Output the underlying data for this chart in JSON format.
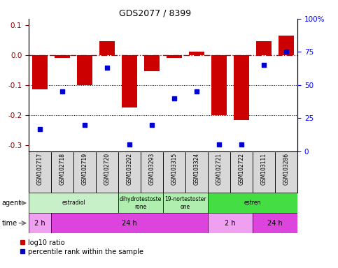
{
  "title": "GDS2077 / 8399",
  "samples": [
    "GSM102717",
    "GSM102718",
    "GSM102719",
    "GSM102720",
    "GSM103292",
    "GSM103293",
    "GSM103315",
    "GSM103324",
    "GSM102721",
    "GSM102722",
    "GSM103111",
    "GSM103286"
  ],
  "log10_ratio": [
    -0.115,
    -0.01,
    -0.1,
    0.045,
    -0.175,
    -0.055,
    -0.01,
    0.01,
    -0.2,
    -0.215,
    0.045,
    0.065
  ],
  "percentile": [
    17,
    45,
    20,
    63,
    5,
    20,
    40,
    45,
    5,
    5,
    65,
    75
  ],
  "bar_color": "#CC0000",
  "dot_color": "#0000CC",
  "dashed_line_color": "#CC0000",
  "ylim_left": [
    -0.32,
    0.12
  ],
  "ylim_right": [
    0,
    100
  ],
  "y_ticks_left": [
    0.1,
    0.0,
    -0.1,
    -0.2,
    -0.3
  ],
  "y_ticks_right": [
    100,
    75,
    50,
    25,
    0
  ],
  "agent_groups": [
    {
      "label": "estradiol",
      "start": 0,
      "end": 4,
      "color": "#C8F0C8"
    },
    {
      "label": "dihydrotestoste\nrone",
      "start": 4,
      "end": 6,
      "color": "#B0EEB0"
    },
    {
      "label": "19-nortestoster\none",
      "start": 6,
      "end": 8,
      "color": "#B0EEB0"
    },
    {
      "label": "estren",
      "start": 8,
      "end": 12,
      "color": "#44DD44"
    }
  ],
  "time_groups": [
    {
      "label": "2 h",
      "start": 0,
      "end": 1,
      "color": "#F0A0F0"
    },
    {
      "label": "24 h",
      "start": 1,
      "end": 8,
      "color": "#DD44DD"
    },
    {
      "label": "2 h",
      "start": 8,
      "end": 10,
      "color": "#F0A0F0"
    },
    {
      "label": "24 h",
      "start": 10,
      "end": 12,
      "color": "#DD44DD"
    }
  ],
  "legend_red": "log10 ratio",
  "legend_blue": "percentile rank within the sample"
}
